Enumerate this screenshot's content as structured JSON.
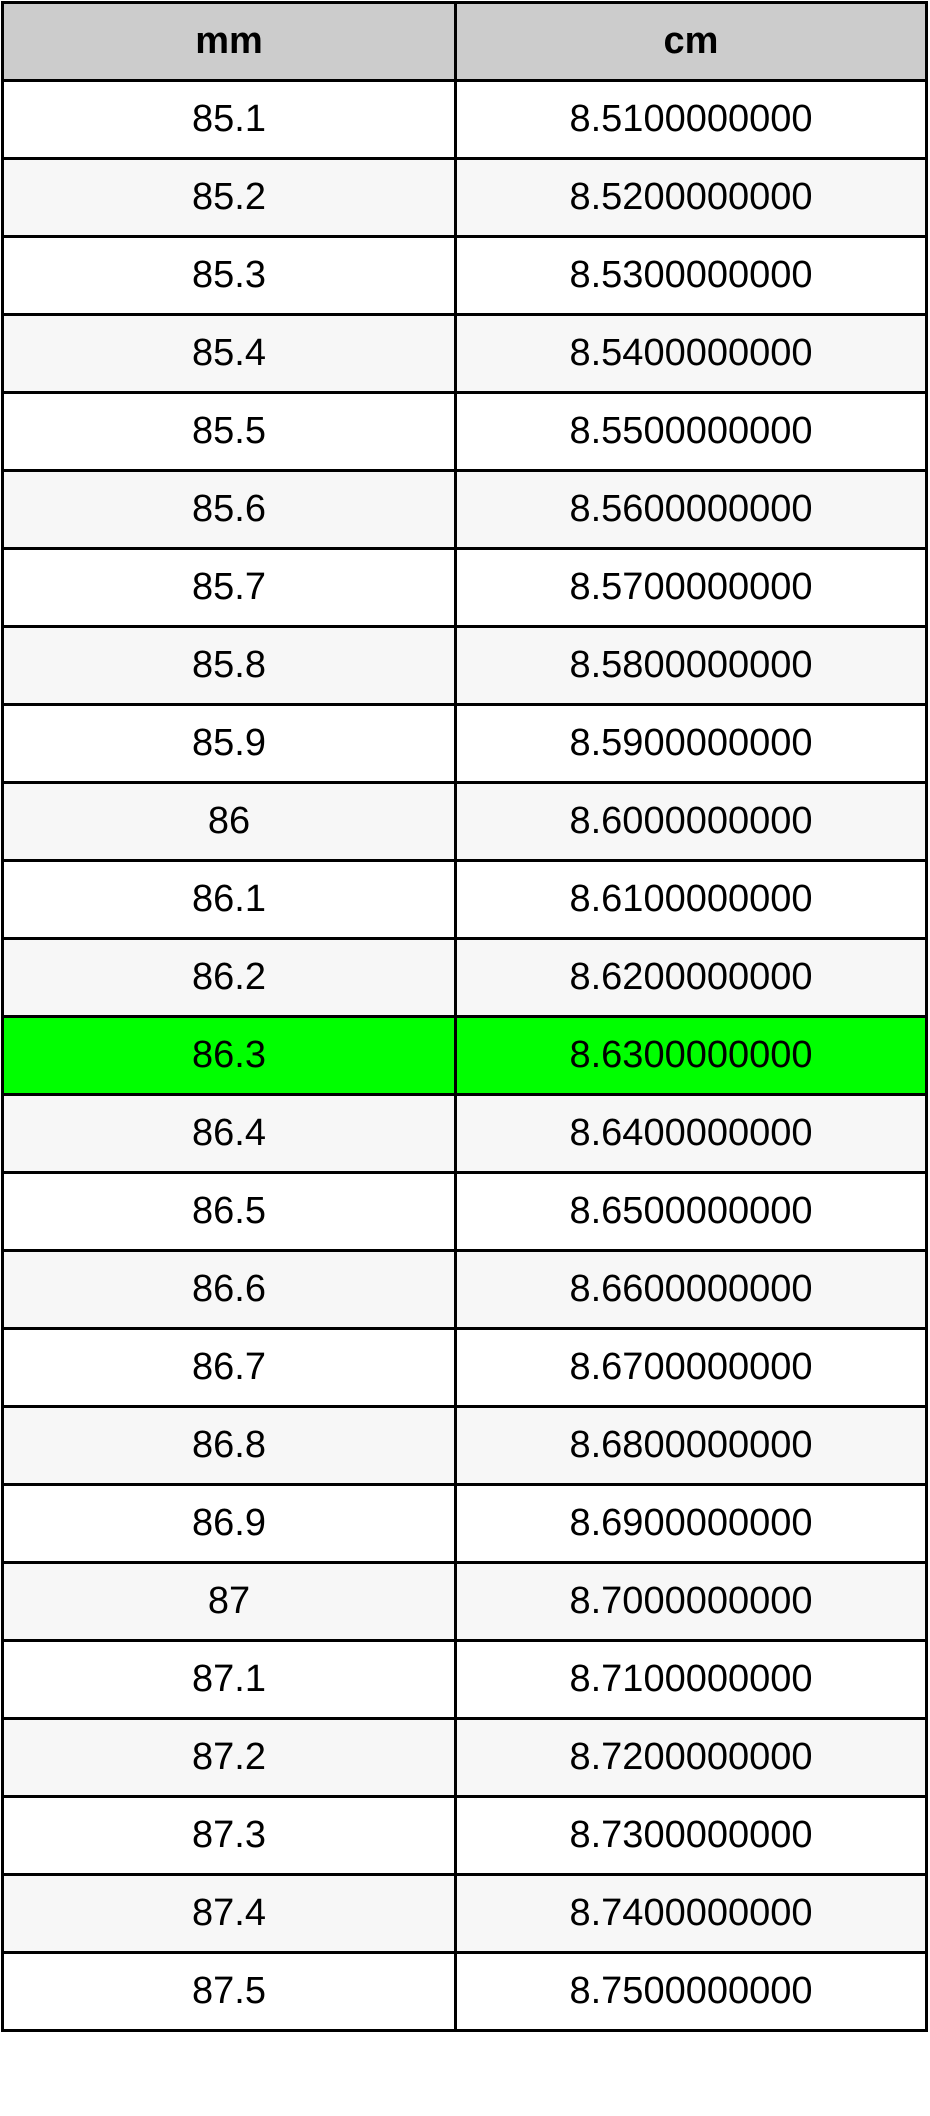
{
  "table": {
    "headers": [
      "mm",
      "cm"
    ],
    "highlight_color": "#00ff00",
    "highlighted_row": 12,
    "rows": [
      [
        "85.1",
        "8.5100000000"
      ],
      [
        "85.2",
        "8.5200000000"
      ],
      [
        "85.3",
        "8.5300000000"
      ],
      [
        "85.4",
        "8.5400000000"
      ],
      [
        "85.5",
        "8.5500000000"
      ],
      [
        "85.6",
        "8.5600000000"
      ],
      [
        "85.7",
        "8.5700000000"
      ],
      [
        "85.8",
        "8.5800000000"
      ],
      [
        "85.9",
        "8.5900000000"
      ],
      [
        "86",
        "8.6000000000"
      ],
      [
        "86.1",
        "8.6100000000"
      ],
      [
        "86.2",
        "8.6200000000"
      ],
      [
        "86.3",
        "8.6300000000"
      ],
      [
        "86.4",
        "8.6400000000"
      ],
      [
        "86.5",
        "8.6500000000"
      ],
      [
        "86.6",
        "8.6600000000"
      ],
      [
        "86.7",
        "8.6700000000"
      ],
      [
        "86.8",
        "8.6800000000"
      ],
      [
        "86.9",
        "8.6900000000"
      ],
      [
        "87",
        "8.7000000000"
      ],
      [
        "87.1",
        "8.7100000000"
      ],
      [
        "87.2",
        "8.7200000000"
      ],
      [
        "87.3",
        "8.7300000000"
      ],
      [
        "87.4",
        "8.7400000000"
      ],
      [
        "87.5",
        "8.7500000000"
      ]
    ]
  }
}
